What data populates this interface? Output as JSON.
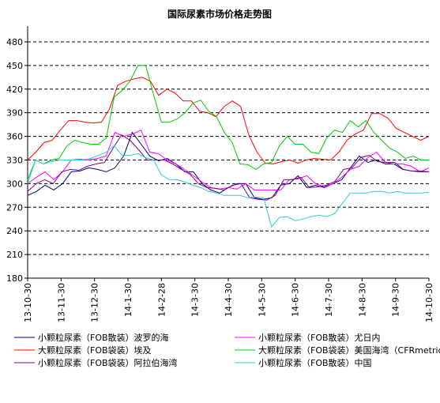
{
  "chart_data": {
    "type": "line",
    "title": "国际尿素市场价格走势图",
    "xlabel": "",
    "ylabel": "",
    "ylim": [
      180,
      500
    ],
    "yticks": [
      180,
      210,
      240,
      270,
      300,
      330,
      360,
      390,
      420,
      450,
      480
    ],
    "grid": "horizontal-dashed",
    "legend_position": "bottom",
    "x_tick_labels": [
      "13-10-30",
      "13-11-30",
      "13-12-30",
      "14-1-30",
      "14-2-28",
      "14-3-30",
      "14-4-30",
      "14-5-30",
      "14-6-30",
      "14-7-30",
      "14-8-30",
      "14-9-30",
      "14-10-30"
    ],
    "colors": {
      "axis": "#000000",
      "grid": "#000000"
    },
    "series": [
      {
        "name": "小颗粒尿素（FOB散装）波罗的海",
        "color": "#000080",
        "values": [
          285,
          290,
          298,
          292,
          300,
          315,
          316,
          320,
          318,
          315,
          320,
          335,
          365,
          350,
          335,
          329,
          332,
          325,
          315,
          315,
          300,
          292,
          288,
          295,
          300,
          300,
          282,
          280,
          282,
          298,
          300,
          310,
          295,
          298,
          295,
          300,
          305,
          320,
          335,
          327,
          330,
          325,
          325,
          318,
          316,
          315,
          315
        ]
      },
      {
        "name": "小颗粒尿素（FOB散装）尤日内",
        "color": "#ff00ff",
        "values": [
          300,
          308,
          315,
          305,
          315,
          330,
          331,
          330,
          332,
          335,
          365,
          360,
          363,
          368,
          340,
          338,
          330,
          325,
          318,
          310,
          302,
          295,
          293,
          295,
          293,
          300,
          292,
          292,
          292,
          292,
          305,
          306,
          310,
          300,
          296,
          300,
          308,
          318,
          322,
          333,
          340,
          327,
          325,
          325,
          322,
          315,
          320
        ]
      },
      {
        "name": "大颗粒尿素（FOB袋装）埃及",
        "color": "#ff0000",
        "values": [
          330,
          340,
          352,
          355,
          368,
          380,
          380,
          378,
          377,
          378,
          395,
          425,
          430,
          433,
          435,
          430,
          412,
          420,
          415,
          405,
          405,
          392,
          390,
          385,
          398,
          405,
          398,
          362,
          340,
          326,
          325,
          328,
          330,
          326,
          330,
          332,
          331,
          330,
          340,
          355,
          363,
          368,
          389,
          389,
          383,
          370,
          365,
          360,
          355,
          360
        ]
      },
      {
        "name": "大颗粒尿素（FOB袋装）美国海湾（CFRmetric）",
        "color": "#00cc00",
        "values": [
          305,
          330,
          325,
          330,
          332,
          348,
          355,
          352,
          350,
          350,
          358,
          410,
          418,
          430,
          450,
          450,
          413,
          378,
          378,
          382,
          390,
          402,
          406,
          392,
          385,
          365,
          352,
          325,
          324,
          318,
          325,
          327,
          348,
          360,
          350,
          350,
          340,
          338,
          358,
          368,
          365,
          380,
          372,
          380,
          365,
          355,
          345,
          340,
          332,
          335,
          330,
          330
        ]
      },
      {
        "name": "小颗粒尿素（FOB袋装）阿拉伯海湾",
        "color": "#800080",
        "values": [
          290,
          300,
          305,
          300,
          315,
          318,
          317,
          322,
          325,
          327,
          345,
          362,
          355,
          343,
          330,
          330,
          330,
          325,
          318,
          312,
          300,
          295,
          294,
          292,
          298,
          300,
          282,
          280,
          279,
          285,
          305,
          305,
          308,
          295,
          296,
          298,
          303,
          318,
          320,
          333,
          336,
          328,
          327,
          327,
          318,
          316,
          316,
          315
        ]
      },
      {
        "name": "小颗粒尿素（FOB散装）中国",
        "color": "#33cccc",
        "values": [
          300,
          330,
          325,
          328,
          330,
          330,
          330,
          330,
          332,
          336,
          340,
          348,
          336,
          336,
          338,
          333,
          330,
          311,
          305,
          305,
          302,
          298,
          295,
          290,
          288,
          285,
          285,
          285,
          282,
          283,
          282,
          245,
          257,
          258,
          253,
          255,
          258,
          260,
          258,
          262,
          275,
          288,
          288,
          288,
          290,
          290,
          288,
          290,
          288,
          288,
          288,
          289
        ]
      }
    ]
  }
}
